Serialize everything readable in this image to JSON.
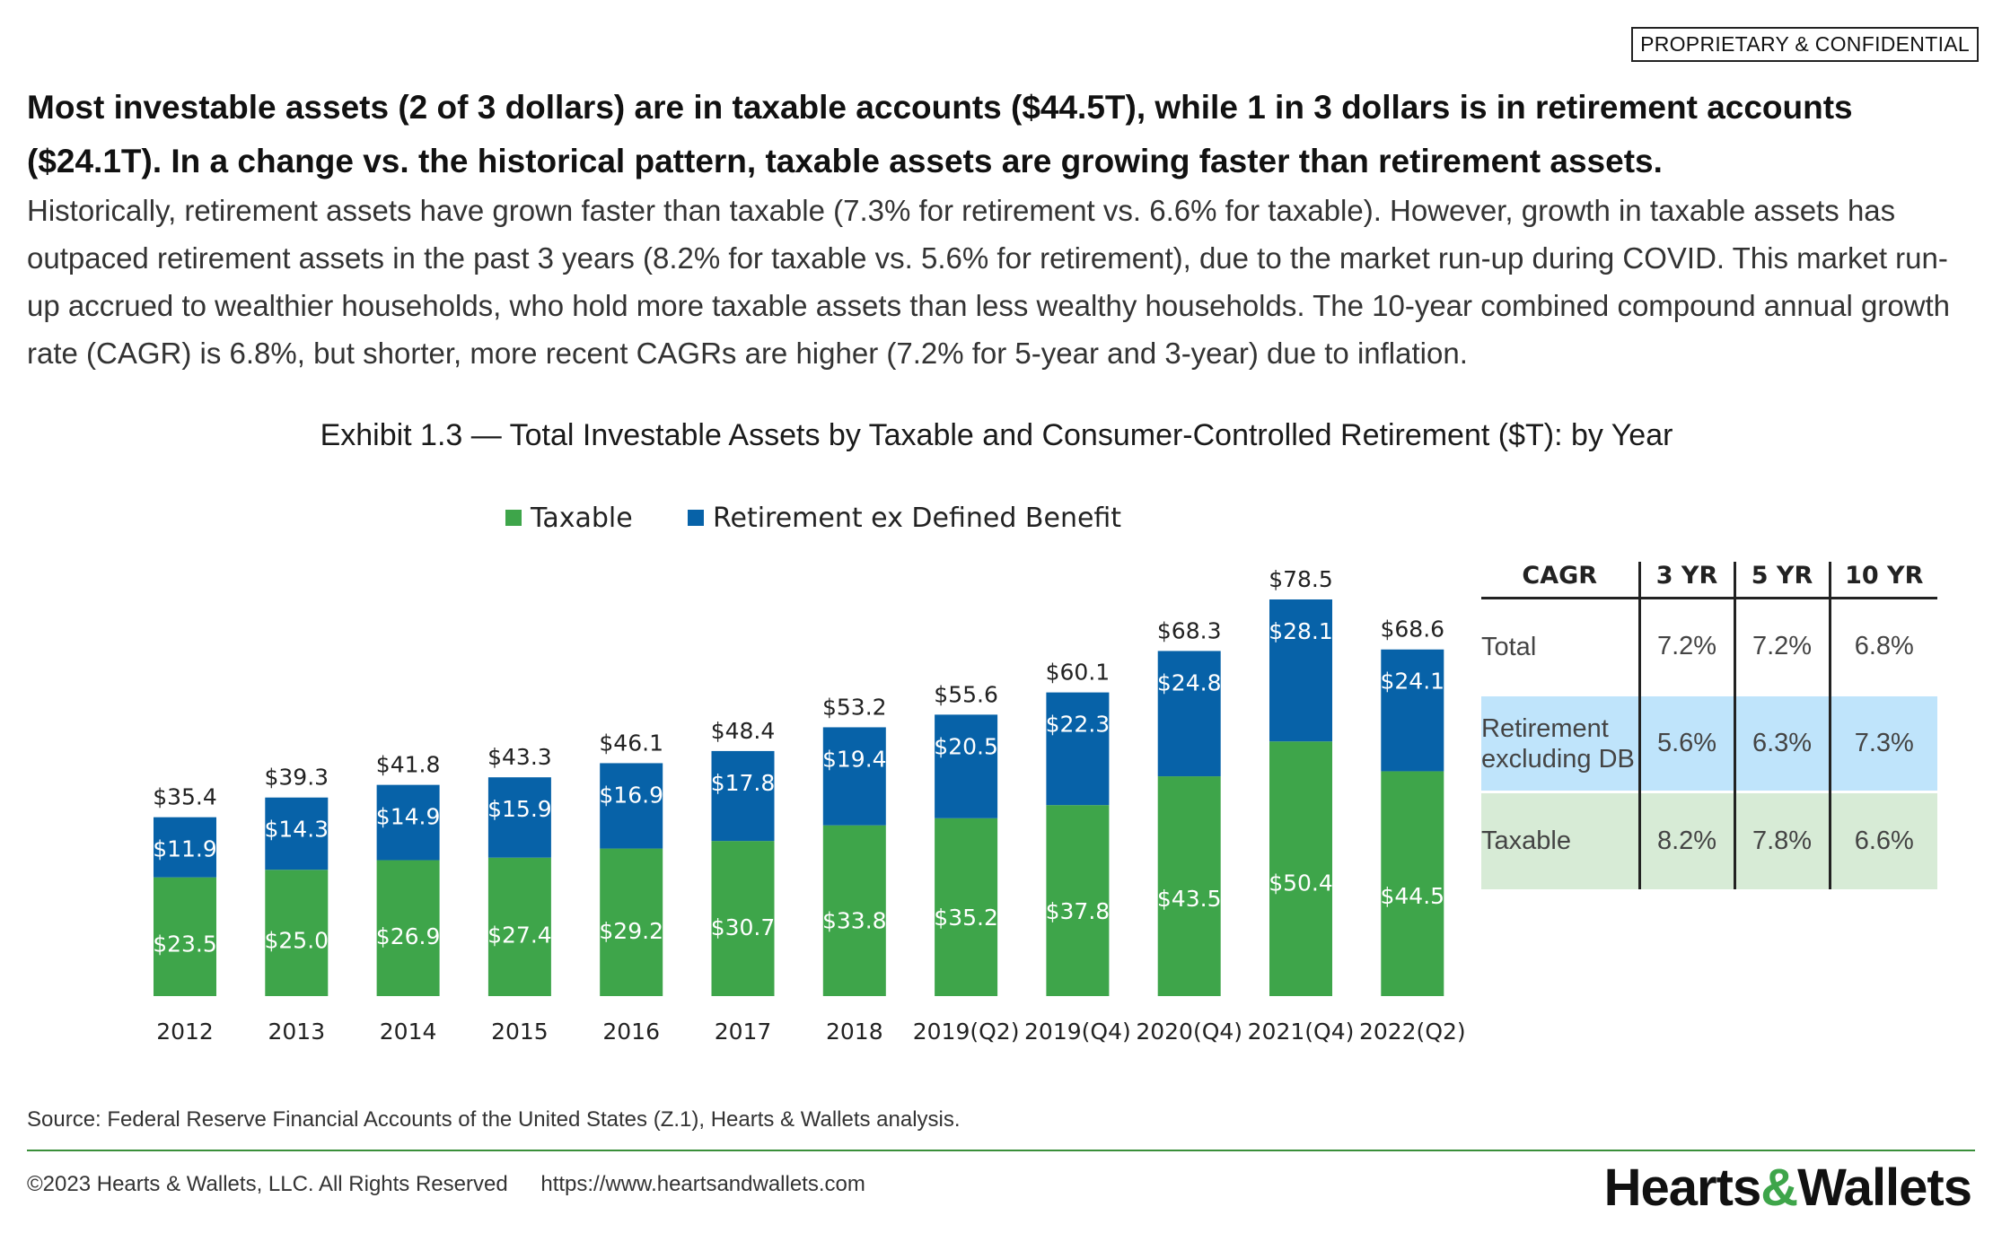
{
  "badge": "PROPRIETARY & CONFIDENTIAL",
  "headline": "Most investable assets (2 of 3 dollars) are in taxable accounts ($44.5T), while 1 in 3 dollars is in retirement accounts ($24.1T). In a change vs. the historical pattern, taxable assets are growing faster than retirement assets.",
  "body": "Historically, retirement assets have grown faster than taxable (7.3% for retirement vs. 6.6% for taxable). However, growth in taxable assets has outpaced retirement assets in the past 3 years (8.2% for taxable vs. 5.6% for retirement), due to the market run-up during COVID. This market run-up accrued to wealthier households, who hold more taxable assets than less wealthy households. The 10-year combined compound annual growth rate (CAGR) is 6.8%, but shorter, more recent CAGRs are higher (7.2% for 5-year and 3-year) due to inflation.",
  "colors": {
    "taxable": "#3ea54a",
    "retirement": "#0762a8",
    "ret_row": "#bfe4fb",
    "tax_row": "#d7ebd6"
  },
  "chart_data": {
    "type": "bar",
    "stacked": true,
    "title": "Exhibit 1.3 — Total Investable Assets by Taxable and Consumer-Controlled Retirement ($T): by Year",
    "legend_position": "top",
    "grid": false,
    "ylim": [
      0,
      80
    ],
    "categories": [
      "2012",
      "2013",
      "2014",
      "2015",
      "2016",
      "2017",
      "2018",
      "2019(Q2)",
      "2019(Q4)",
      "2020(Q4)",
      "2021(Q4)",
      "2022(Q2)"
    ],
    "series": [
      {
        "name": "Taxable",
        "values": [
          23.5,
          25.0,
          26.9,
          27.4,
          29.2,
          30.7,
          33.8,
          35.2,
          37.8,
          43.5,
          50.4,
          44.5
        ]
      },
      {
        "name": "Retirement ex Defined Benefit",
        "values": [
          11.9,
          14.3,
          14.9,
          15.9,
          16.9,
          17.8,
          19.4,
          20.5,
          22.3,
          24.8,
          28.1,
          24.1
        ]
      }
    ],
    "totals": [
      35.4,
      39.3,
      41.8,
      43.3,
      46.1,
      48.4,
      53.2,
      55.6,
      60.1,
      68.3,
      78.5,
      68.6
    ],
    "label_prefix": "$"
  },
  "cagr_table": {
    "headers": [
      "CAGR",
      "3 YR",
      "5 YR",
      "10 YR"
    ],
    "rows": [
      {
        "label": "Total",
        "values": [
          "7.2%",
          "7.2%",
          "6.8%"
        ]
      },
      {
        "label": "Retirement excluding DB",
        "values": [
          "5.6%",
          "6.3%",
          "7.3%"
        ]
      },
      {
        "label": "Taxable",
        "values": [
          "8.2%",
          "7.8%",
          "6.6%"
        ]
      }
    ]
  },
  "source": "Source: Federal Reserve Financial Accounts of the United States (Z.1), Hearts & Wallets analysis.",
  "footer": {
    "copyright": "©2023 Hearts & Wallets, LLC. All Rights Reserved",
    "url": "https://www.heartsandwallets.com",
    "logo_left": "Hearts",
    "logo_amp": "&",
    "logo_right": "Wallets"
  }
}
